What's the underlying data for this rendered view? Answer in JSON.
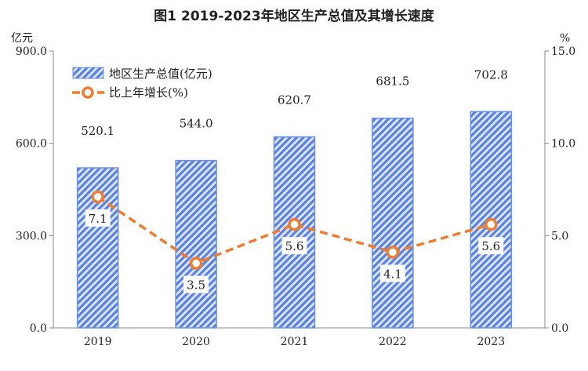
{
  "chart_data": {
    "type": "bar+line",
    "title": "图1  2019-2023年地区生产总值及其增长速度",
    "categories": [
      "2019",
      "2020",
      "2021",
      "2022",
      "2023"
    ],
    "series": [
      {
        "name": "地区生产总值(亿元)",
        "type": "bar",
        "axis": "left",
        "values": [
          520.1,
          544.0,
          620.7,
          681.5,
          702.8
        ],
        "labels": [
          "520.1",
          "544.0",
          "620.7",
          "681.5",
          "702.8"
        ],
        "color": "#5b82e0"
      },
      {
        "name": "比上年增长(%)",
        "type": "line",
        "axis": "right",
        "values": [
          7.1,
          3.5,
          5.6,
          4.1,
          5.6
        ],
        "labels": [
          "7.1",
          "3.5",
          "5.6",
          "4.1",
          "5.6"
        ],
        "color": "#ed7d31"
      }
    ],
    "left_axis": {
      "unit": "亿元",
      "ylim": [
        0,
        900
      ],
      "ticks": [
        "0.0",
        "300.0",
        "600.0",
        "900.0"
      ]
    },
    "right_axis": {
      "unit": "%",
      "ylim": [
        0,
        15
      ],
      "ticks": [
        "0.0",
        "5.0",
        "10.0",
        "15.0"
      ]
    },
    "grid": false,
    "legend_position": "top-left"
  }
}
